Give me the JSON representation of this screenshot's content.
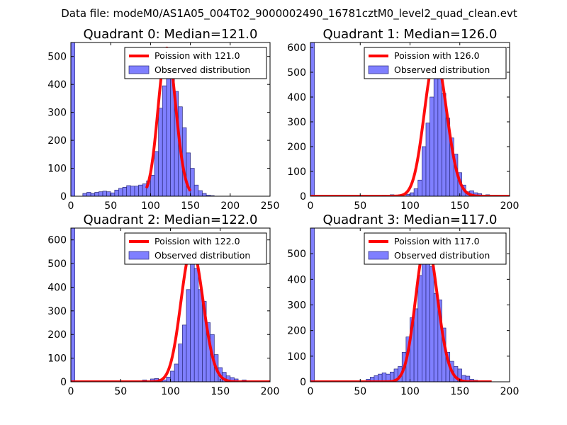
{
  "chart_data": {
    "suptitle": "Data file: modeM0/AS1A05_004T02_9000002490_16781cztM0_level2_quad_clean.evt",
    "panels": [
      {
        "type": "bar",
        "title": "Quadrant 0: Median=121.0",
        "median": 121.0,
        "xlim": [
          0,
          250
        ],
        "ylim": [
          0,
          550
        ],
        "xticks": [
          "0",
          "50",
          "100",
          "150",
          "200",
          "250"
        ],
        "yticks": [
          "0",
          "100",
          "200",
          "300",
          "400",
          "500"
        ],
        "bin_width": 5,
        "bins": [
          [
            0,
            550
          ],
          [
            15,
            10
          ],
          [
            20,
            14
          ],
          [
            25,
            10
          ],
          [
            30,
            14
          ],
          [
            35,
            16
          ],
          [
            40,
            18
          ],
          [
            45,
            16
          ],
          [
            50,
            12
          ],
          [
            55,
            22
          ],
          [
            60,
            28
          ],
          [
            65,
            32
          ],
          [
            70,
            38
          ],
          [
            75,
            36
          ],
          [
            80,
            36
          ],
          [
            85,
            40
          ],
          [
            90,
            44
          ],
          [
            95,
            55
          ],
          [
            100,
            75
          ],
          [
            105,
            160
          ],
          [
            110,
            315
          ],
          [
            115,
            395
          ],
          [
            120,
            490
          ],
          [
            125,
            440
          ],
          [
            130,
            375
          ],
          [
            135,
            320
          ],
          [
            140,
            245
          ],
          [
            145,
            155
          ],
          [
            150,
            100
          ],
          [
            155,
            40
          ],
          [
            160,
            20
          ],
          [
            165,
            10
          ],
          [
            170,
            4
          ],
          [
            175,
            2
          ]
        ],
        "poisson_label": "Poission with 121.0",
        "poisson_peak": 530,
        "poisson_range": [
          95,
          150
        ],
        "observed_label": "Observed distribution"
      },
      {
        "type": "bar",
        "title": "Quadrant 1: Median=126.0",
        "median": 126.0,
        "xlim": [
          0,
          200
        ],
        "ylim": [
          0,
          620
        ],
        "xticks": [
          "0",
          "50",
          "100",
          "150",
          "200"
        ],
        "yticks": [
          "0",
          "100",
          "200",
          "300",
          "400",
          "500",
          "600"
        ],
        "bin_width": 4,
        "bins": [
          [
            0,
            620
          ],
          [
            72,
            4
          ],
          [
            80,
            6
          ],
          [
            88,
            6
          ],
          [
            96,
            8
          ],
          [
            100,
            14
          ],
          [
            104,
            30
          ],
          [
            108,
            65
          ],
          [
            112,
            200
          ],
          [
            116,
            295
          ],
          [
            120,
            400
          ],
          [
            124,
            515
          ],
          [
            128,
            480
          ],
          [
            132,
            415
          ],
          [
            136,
            315
          ],
          [
            140,
            235
          ],
          [
            144,
            170
          ],
          [
            148,
            95
          ],
          [
            152,
            45
          ],
          [
            156,
            18
          ],
          [
            160,
            22
          ],
          [
            164,
            14
          ],
          [
            168,
            10
          ],
          [
            176,
            6
          ],
          [
            184,
            2
          ]
        ],
        "poisson_label": "Poission with 126.0",
        "poisson_peak": 560,
        "poisson_range": [
          0,
          200
        ],
        "observed_label": "Observed distribution"
      },
      {
        "type": "bar",
        "title": "Quadrant 2: Median=122.0",
        "median": 122.0,
        "xlim": [
          0,
          200
        ],
        "ylim": [
          0,
          650
        ],
        "xticks": [
          "0",
          "50",
          "100",
          "150",
          "200"
        ],
        "yticks": [
          "0",
          "100",
          "200",
          "300",
          "400",
          "500",
          "600"
        ],
        "bin_width": 4,
        "bins": [
          [
            0,
            650
          ],
          [
            72,
            8
          ],
          [
            80,
            12
          ],
          [
            84,
            14
          ],
          [
            88,
            10
          ],
          [
            92,
            8
          ],
          [
            96,
            20
          ],
          [
            100,
            45
          ],
          [
            104,
            75
          ],
          [
            108,
            160
          ],
          [
            112,
            240
          ],
          [
            116,
            390
          ],
          [
            120,
            510
          ],
          [
            124,
            480
          ],
          [
            128,
            390
          ],
          [
            132,
            340
          ],
          [
            136,
            250
          ],
          [
            140,
            200
          ],
          [
            144,
            115
          ],
          [
            148,
            60
          ],
          [
            152,
            40
          ],
          [
            156,
            25
          ],
          [
            160,
            18
          ],
          [
            164,
            12
          ],
          [
            172,
            8
          ]
        ],
        "poisson_label": "Poission with 122.0",
        "poisson_peak": 565,
        "poisson_range": [
          0,
          200
        ],
        "observed_label": "Observed distribution"
      },
      {
        "type": "bar",
        "title": "Quadrant 3: Median=117.0",
        "median": 117.0,
        "xlim": [
          0,
          200
        ],
        "ylim": [
          0,
          600
        ],
        "xticks": [
          "0",
          "50",
          "100",
          "150",
          "200"
        ],
        "yticks": [
          "0",
          "100",
          "200",
          "300",
          "400",
          "500"
        ],
        "bin_width": 4,
        "bins": [
          [
            0,
            600
          ],
          [
            56,
            10
          ],
          [
            60,
            18
          ],
          [
            64,
            24
          ],
          [
            68,
            30
          ],
          [
            72,
            35
          ],
          [
            76,
            30
          ],
          [
            80,
            38
          ],
          [
            84,
            50
          ],
          [
            88,
            60
          ],
          [
            92,
            115
          ],
          [
            96,
            175
          ],
          [
            100,
            250
          ],
          [
            104,
            285
          ],
          [
            108,
            415
          ],
          [
            112,
            495
          ],
          [
            116,
            475
          ],
          [
            120,
            450
          ],
          [
            124,
            345
          ],
          [
            128,
            320
          ],
          [
            132,
            210
          ],
          [
            136,
            115
          ],
          [
            140,
            80
          ],
          [
            144,
            60
          ],
          [
            148,
            50
          ],
          [
            152,
            25
          ],
          [
            156,
            22
          ],
          [
            160,
            10
          ],
          [
            164,
            6
          ]
        ],
        "poisson_label": "Poission with 117.0",
        "poisson_peak": 550,
        "poisson_range": [
          0,
          182
        ],
        "observed_label": "Observed distribution"
      }
    ]
  }
}
